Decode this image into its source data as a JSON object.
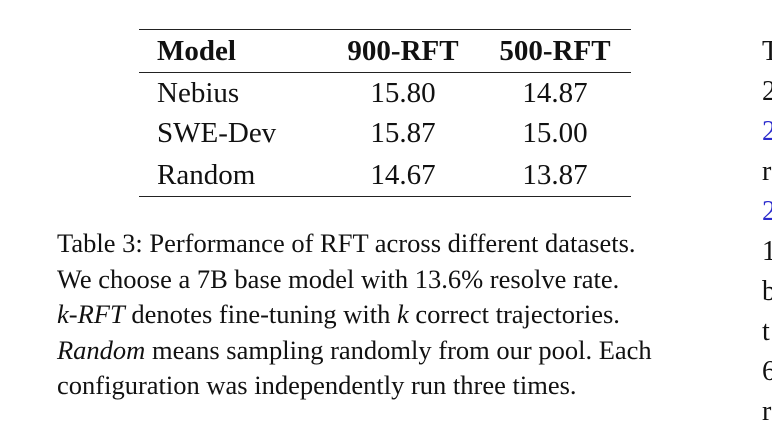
{
  "table": {
    "headers": [
      "Model",
      "900-RFT",
      "500-RFT"
    ],
    "rows": [
      [
        "Nebius",
        "15.80",
        "14.87"
      ],
      [
        "SWE-Dev",
        "15.87",
        "15.00"
      ],
      [
        "Random",
        "14.67",
        "13.87"
      ]
    ]
  },
  "caption": {
    "line1": "Table 3: Performance of RFT across different datasets.",
    "line2": "We choose a 7B base model with 13.6% resolve rate.",
    "line3_em": "k-RFT",
    "line3_rest1": " denotes fine-tuning with ",
    "line3_var": "k",
    "line3_rest2": " correct trajectories.",
    "line4_em": "Random",
    "line4_rest": " means sampling randomly from our pool. Each",
    "line5": "configuration was independently run three times."
  },
  "right_column": [
    "T",
    "2",
    "2",
    "r",
    "2",
    "1",
    "b",
    "t",
    "6",
    "r"
  ],
  "colors": {
    "text": "#111111",
    "link": "#2a2acc"
  }
}
